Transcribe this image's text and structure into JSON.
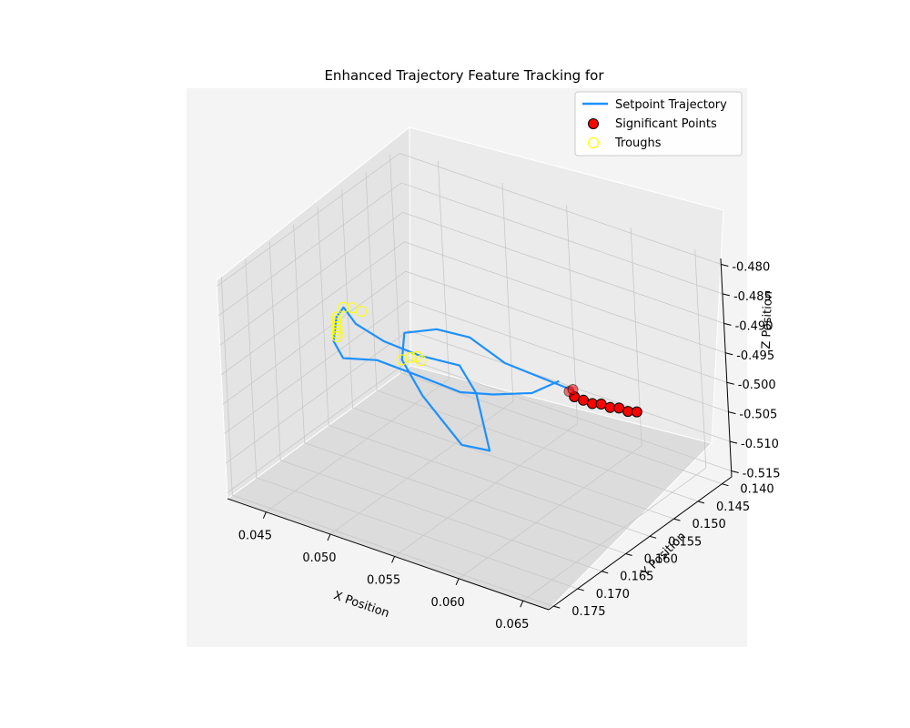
{
  "chart_data": {
    "type": "line",
    "title": "Enhanced Trajectory Feature Tracking for",
    "xlabel": "X Position",
    "ylabel": "Y Position",
    "zlabel": "Z Position",
    "xlim": [
      0.042,
      0.067
    ],
    "ylim": [
      0.138,
      0.176
    ],
    "zlim": [
      -0.516,
      -0.479
    ],
    "x_ticks": [
      "0.045",
      "0.050",
      "0.055",
      "0.060",
      "0.065"
    ],
    "y_ticks": [
      "0.140",
      "0.145",
      "0.150",
      "0.155",
      "0.160",
      "0.165",
      "0.170",
      "0.175"
    ],
    "z_ticks": [
      "-0.480",
      "-0.485",
      "-0.490",
      "-0.495",
      "-0.500",
      "-0.505",
      "-0.510",
      "-0.515"
    ],
    "grid": true,
    "legend": {
      "position": "top-right",
      "entries": [
        {
          "label": "Setpoint Trajectory",
          "kind": "line",
          "color": "#1e90ff"
        },
        {
          "label": "Significant Points",
          "kind": "marker",
          "color": "#ff0000"
        },
        {
          "label": "Troughs",
          "kind": "hollow-marker",
          "color": "#ffff00"
        }
      ]
    },
    "series": [
      {
        "name": "Setpoint Trajectory",
        "color": "#1e90ff",
        "points": [
          [
            0.06,
            0.151,
            -0.499
          ],
          [
            0.0585,
            0.154,
            -0.496
          ],
          [
            0.057,
            0.157,
            -0.493
          ],
          [
            0.0555,
            0.16,
            -0.488
          ],
          [
            0.0545,
            0.164,
            -0.485
          ],
          [
            0.0535,
            0.168,
            -0.484
          ],
          [
            0.054,
            0.17,
            -0.487
          ],
          [
            0.0555,
            0.17,
            -0.492
          ],
          [
            0.058,
            0.169,
            -0.499
          ],
          [
            0.059,
            0.166,
            -0.501
          ],
          [
            0.057,
            0.162,
            -0.5
          ],
          [
            0.055,
            0.158,
            -0.499
          ],
          [
            0.053,
            0.156,
            -0.497
          ],
          [
            0.051,
            0.159,
            -0.495
          ],
          [
            0.0495,
            0.162,
            -0.492
          ],
          [
            0.0485,
            0.165,
            -0.488
          ],
          [
            0.048,
            0.166,
            -0.485
          ],
          [
            0.047,
            0.165,
            -0.488
          ],
          [
            0.0455,
            0.162,
            -0.495
          ],
          [
            0.045,
            0.159,
            -0.5
          ],
          [
            0.0465,
            0.156,
            -0.501
          ],
          [
            0.049,
            0.154,
            -0.503
          ],
          [
            0.051,
            0.151,
            -0.506
          ],
          [
            0.052,
            0.147,
            -0.508
          ],
          [
            0.0535,
            0.143,
            -0.509
          ],
          [
            0.0545,
            0.14,
            -0.508
          ]
        ]
      },
      {
        "name": "Significant Points",
        "color": "#ff0000",
        "points": [
          [
            0.06,
            0.151,
            -0.5
          ],
          [
            0.0605,
            0.1505,
            -0.5005
          ],
          [
            0.061,
            0.15,
            -0.501
          ],
          [
            0.0615,
            0.1495,
            -0.501
          ],
          [
            0.062,
            0.149,
            -0.5015
          ],
          [
            0.0625,
            0.1485,
            -0.5015
          ],
          [
            0.063,
            0.148,
            -0.502
          ],
          [
            0.0635,
            0.1475,
            -0.502
          ],
          [
            0.06,
            0.152,
            -0.4985
          ],
          [
            0.0605,
            0.1525,
            -0.4975
          ]
        ]
      },
      {
        "name": "Troughs",
        "color": "#ffff00",
        "points": [
          [
            0.054,
            0.17,
            -0.487
          ],
          [
            0.0545,
            0.1695,
            -0.4865
          ],
          [
            0.055,
            0.1695,
            -0.486
          ],
          [
            0.0555,
            0.17,
            -0.486
          ],
          [
            0.048,
            0.166,
            -0.485
          ],
          [
            0.0485,
            0.1655,
            -0.485
          ],
          [
            0.049,
            0.165,
            -0.4855
          ],
          [
            0.047,
            0.165,
            -0.488
          ],
          [
            0.0468,
            0.1645,
            -0.489
          ],
          [
            0.0466,
            0.164,
            -0.49
          ],
          [
            0.0464,
            0.1635,
            -0.491
          ],
          [
            0.0462,
            0.163,
            -0.492
          ],
          [
            0.046,
            0.1625,
            -0.493
          ],
          [
            0.0458,
            0.162,
            -0.494
          ]
        ]
      }
    ]
  }
}
